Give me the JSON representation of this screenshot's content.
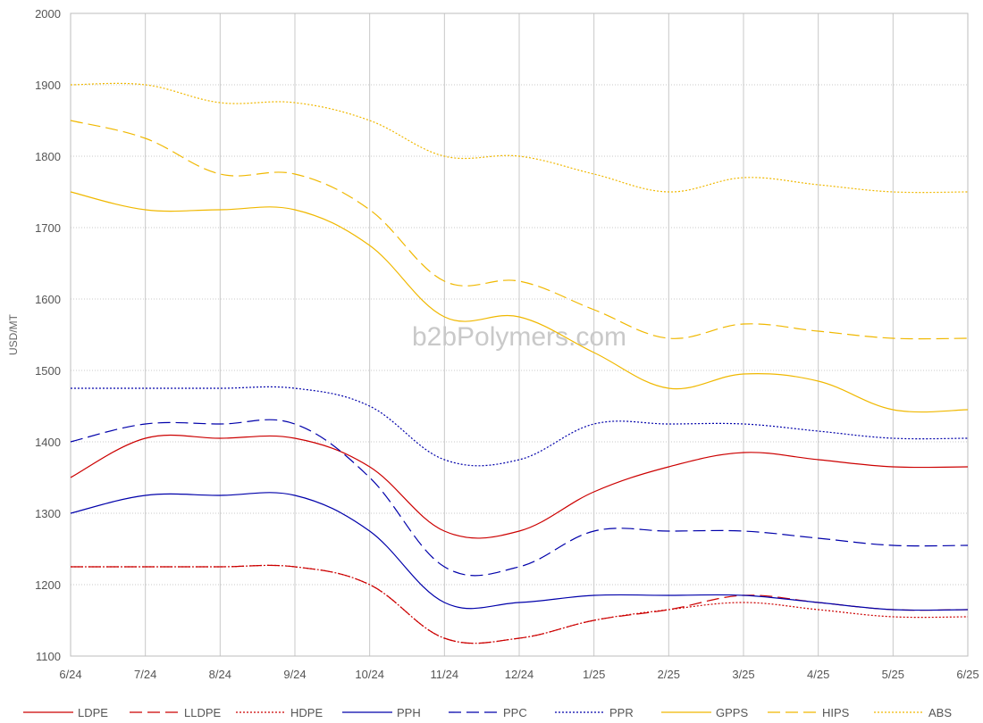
{
  "chart_data": {
    "type": "line",
    "title": "",
    "xlabel": "",
    "ylabel": "USD/MT",
    "watermark": "b2bPolymers.com",
    "ylim": [
      1100,
      2000
    ],
    "yticks": [
      1100,
      1200,
      1300,
      1400,
      1500,
      1600,
      1700,
      1800,
      1900,
      2000
    ],
    "categories": [
      "6/24",
      "7/24",
      "8/24",
      "9/24",
      "10/24",
      "11/24",
      "12/24",
      "1/25",
      "2/25",
      "3/25",
      "4/25",
      "5/25",
      "6/25"
    ],
    "grid": {
      "vertical": "solid",
      "horizontal": "dotted"
    },
    "legend_position": "bottom",
    "series": [
      {
        "name": "LDPE",
        "color": "#cc0000",
        "dash": "solid",
        "values": [
          1350,
          1405,
          1405,
          1405,
          1365,
          1275,
          1275,
          1330,
          1365,
          1385,
          1375,
          1365,
          1365
        ]
      },
      {
        "name": "LLDPE",
        "color": "#cc0000",
        "dash": "dashed",
        "values": [
          1225,
          1225,
          1225,
          1225,
          1200,
          1125,
          1125,
          1150,
          1165,
          1185,
          1175,
          1165,
          1165
        ]
      },
      {
        "name": "HDPE",
        "color": "#cc0000",
        "dash": "dotted",
        "values": [
          1225,
          1225,
          1225,
          1225,
          1200,
          1125,
          1125,
          1150,
          1165,
          1175,
          1165,
          1155,
          1155
        ]
      },
      {
        "name": "PPH",
        "color": "#0000aa",
        "dash": "solid",
        "values": [
          1300,
          1325,
          1325,
          1325,
          1275,
          1175,
          1175,
          1185,
          1185,
          1185,
          1175,
          1165,
          1165
        ]
      },
      {
        "name": "PPC",
        "color": "#0000aa",
        "dash": "dashed",
        "values": [
          1400,
          1425,
          1425,
          1425,
          1350,
          1225,
          1225,
          1275,
          1275,
          1275,
          1265,
          1255,
          1255
        ]
      },
      {
        "name": "PPR",
        "color": "#0000aa",
        "dash": "dotted",
        "values": [
          1475,
          1475,
          1475,
          1475,
          1450,
          1375,
          1375,
          1425,
          1425,
          1425,
          1415,
          1405,
          1405
        ]
      },
      {
        "name": "GPPS",
        "color": "#f0b800",
        "dash": "solid",
        "values": [
          1750,
          1725,
          1725,
          1725,
          1675,
          1575,
          1575,
          1525,
          1475,
          1495,
          1485,
          1445,
          1445
        ]
      },
      {
        "name": "HIPS",
        "color": "#f0b800",
        "dash": "dashed",
        "values": [
          1850,
          1825,
          1775,
          1775,
          1725,
          1625,
          1625,
          1585,
          1545,
          1565,
          1555,
          1545,
          1545
        ]
      },
      {
        "name": "ABS",
        "color": "#f0b800",
        "dash": "dotted",
        "values": [
          1900,
          1900,
          1875,
          1875,
          1850,
          1800,
          1800,
          1775,
          1750,
          1770,
          1760,
          1750,
          1750
        ]
      }
    ]
  }
}
